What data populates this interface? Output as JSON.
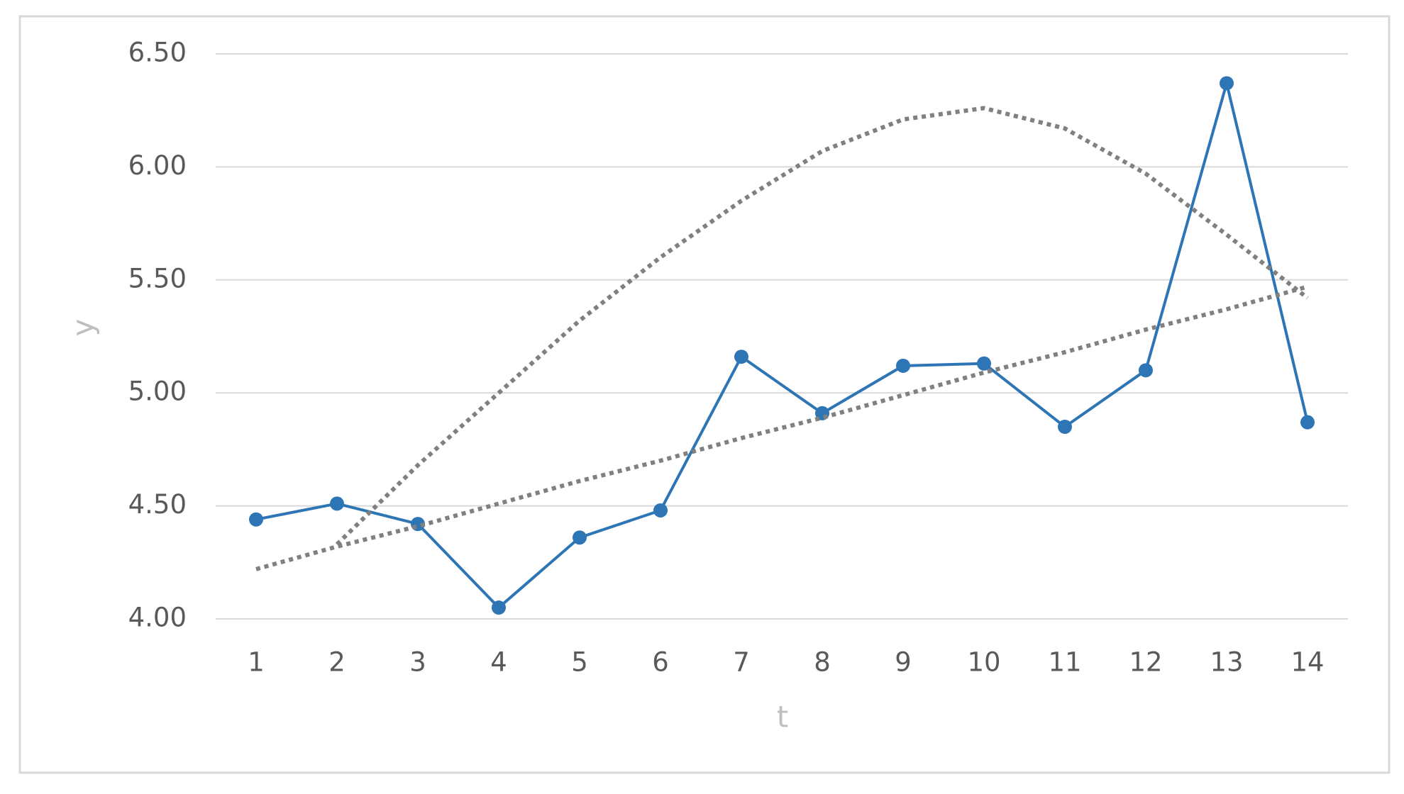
{
  "chart_data": {
    "type": "line",
    "x_label": "t",
    "y_label": "y",
    "categories": [
      "1",
      "2",
      "3",
      "4",
      "5",
      "6",
      "7",
      "8",
      "9",
      "10",
      "11",
      "12",
      "13",
      "14"
    ],
    "series": [
      {
        "color": "#2e75b6",
        "line_style": "solid",
        "markers": true,
        "values": [
          4.44,
          4.51,
          4.42,
          4.05,
          4.36,
          4.48,
          5.16,
          4.91,
          5.12,
          5.13,
          4.85,
          5.1,
          6.37,
          4.87
        ]
      },
      {
        "color": "#808080",
        "line_style": "dotted",
        "markers": false,
        "values": [
          4.22,
          4.32,
          4.41,
          4.51,
          4.61,
          4.7,
          4.8,
          4.89,
          4.99,
          5.09,
          5.18,
          5.28,
          5.37,
          5.47
        ]
      },
      {
        "color": "#808080",
        "line_style": "dotted",
        "markers": false,
        "values": [
          null,
          4.33,
          4.68,
          5.0,
          5.32,
          5.6,
          5.85,
          6.07,
          6.21,
          6.26,
          6.17,
          5.97,
          5.7,
          5.42
        ]
      }
    ],
    "ylim": [
      4,
      6.5
    ],
    "yticks": [
      {
        "value": 4,
        "label": "4.00"
      },
      {
        "value": 4.5,
        "label": "4.50"
      },
      {
        "value": 5,
        "label": "5.00"
      },
      {
        "value": 5.5,
        "label": "5.50"
      },
      {
        "value": 6,
        "label": "6.00"
      },
      {
        "value": 6.5,
        "label": "6.50"
      }
    ],
    "grid": true
  }
}
